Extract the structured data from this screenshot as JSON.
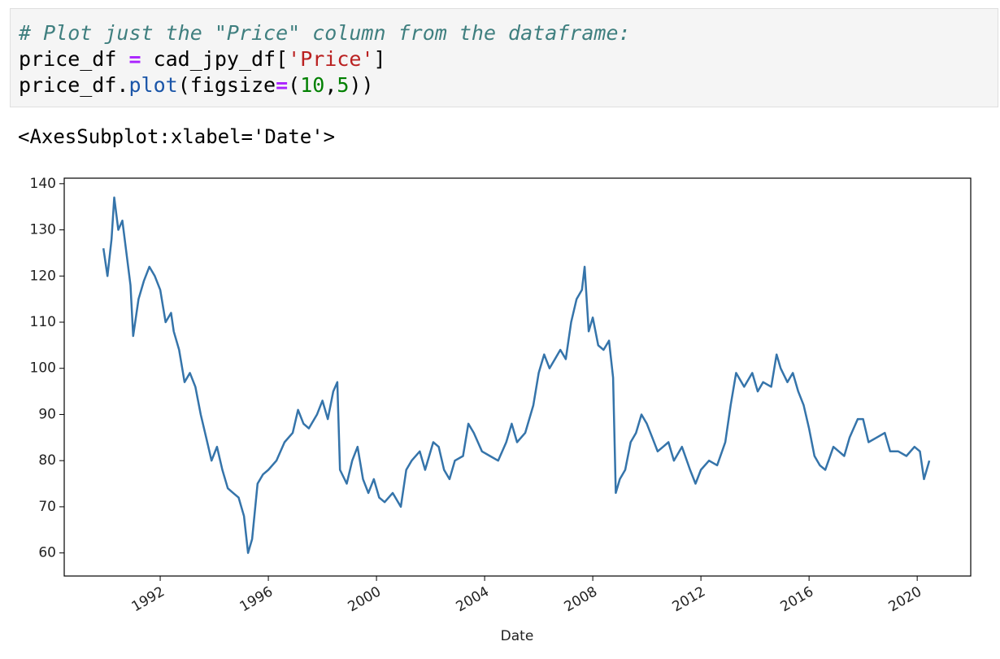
{
  "code": {
    "lines": [
      [
        "# Plot just the \"Price\" column from the dataframe:"
      ],
      [
        "price_df ",
        "=",
        " cad_jpy_df[",
        "'Price'",
        "]"
      ],
      [
        "price_df.",
        "plot",
        "(figsize",
        "=",
        "(",
        "10",
        ",",
        "5",
        "))"
      ]
    ]
  },
  "output": {
    "text": "<AxesSubplot:xlabel='Date'>"
  },
  "chart_data": {
    "type": "line",
    "xlabel": "Date",
    "color": "#3574aa",
    "x": [
      1989.9,
      1990.05,
      1990.2,
      1990.3,
      1990.45,
      1990.6,
      1990.75,
      1990.9,
      1991.0,
      1991.2,
      1991.4,
      1991.6,
      1991.8,
      1992.0,
      1992.2,
      1992.4,
      1992.5,
      1992.7,
      1992.9,
      1993.1,
      1993.3,
      1993.5,
      1993.7,
      1993.9,
      1994.1,
      1994.3,
      1994.5,
      1994.7,
      1994.9,
      1995.1,
      1995.25,
      1995.4,
      1995.6,
      1995.8,
      1996.0,
      1996.3,
      1996.6,
      1996.9,
      1997.1,
      1997.3,
      1997.5,
      1997.8,
      1998.0,
      1998.2,
      1998.4,
      1998.55,
      1998.65,
      1998.9,
      1999.1,
      1999.3,
      1999.5,
      1999.7,
      1999.9,
      2000.1,
      2000.3,
      2000.6,
      2000.9,
      2001.1,
      2001.3,
      2001.6,
      2001.8,
      2002.1,
      2002.3,
      2002.5,
      2002.7,
      2002.9,
      2003.2,
      2003.4,
      2003.6,
      2003.9,
      2004.2,
      2004.5,
      2004.8,
      2005.0,
      2005.2,
      2005.5,
      2005.8,
      2006.0,
      2006.2,
      2006.4,
      2006.6,
      2006.8,
      2007.0,
      2007.2,
      2007.4,
      2007.6,
      2007.7,
      2007.85,
      2008.0,
      2008.2,
      2008.4,
      2008.6,
      2008.75,
      2008.85,
      2009.0,
      2009.2,
      2009.4,
      2009.6,
      2009.8,
      2010.0,
      2010.2,
      2010.4,
      2010.6,
      2010.8,
      2011.0,
      2011.3,
      2011.6,
      2011.8,
      2012.0,
      2012.3,
      2012.6,
      2012.9,
      2013.1,
      2013.3,
      2013.6,
      2013.9,
      2014.1,
      2014.3,
      2014.6,
      2014.8,
      2014.95,
      2015.2,
      2015.4,
      2015.6,
      2015.8,
      2016.0,
      2016.2,
      2016.4,
      2016.6,
      2016.9,
      2017.1,
      2017.3,
      2017.5,
      2017.8,
      2018.0,
      2018.2,
      2018.5,
      2018.8,
      2019.0,
      2019.3,
      2019.6,
      2019.9,
      2020.1,
      2020.25,
      2020.45
    ],
    "values": [
      126,
      120,
      128,
      137,
      130,
      132,
      125,
      118,
      107,
      115,
      119,
      122,
      120,
      117,
      110,
      112,
      108,
      104,
      97,
      99,
      96,
      90,
      85,
      80,
      83,
      78,
      74,
      73,
      72,
      68,
      60,
      63,
      75,
      77,
      78,
      80,
      84,
      86,
      91,
      88,
      87,
      90,
      93,
      89,
      95,
      97,
      78,
      75,
      80,
      83,
      76,
      73,
      76,
      72,
      71,
      73,
      70,
      78,
      80,
      82,
      78,
      84,
      83,
      78,
      76,
      80,
      81,
      88,
      86,
      82,
      81,
      80,
      84,
      88,
      84,
      86,
      92,
      99,
      103,
      100,
      102,
      104,
      102,
      110,
      115,
      117,
      122,
      108,
      111,
      105,
      104,
      106,
      98,
      73,
      76,
      78,
      84,
      86,
      90,
      88,
      85,
      82,
      83,
      84,
      80,
      83,
      78,
      75,
      78,
      80,
      79,
      84,
      92,
      99,
      96,
      99,
      95,
      97,
      96,
      103,
      100,
      97,
      99,
      95,
      92,
      87,
      81,
      79,
      78,
      83,
      82,
      81,
      85,
      89,
      89,
      84,
      85,
      86,
      82,
      82,
      81,
      83,
      82,
      76,
      80
    ],
    "xlim": [
      1988.45,
      2021.98
    ],
    "xticks": [
      1992,
      1996,
      2000,
      2004,
      2008,
      2012,
      2016,
      2020
    ],
    "ylim": [
      55,
      141.2
    ],
    "yticks": [
      60,
      70,
      80,
      90,
      100,
      110,
      120,
      130,
      140
    ]
  }
}
